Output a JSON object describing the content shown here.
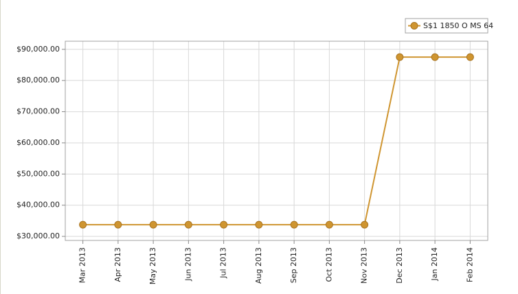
{
  "chart_data": {
    "type": "line",
    "categories": [
      "Mar 2013",
      "Apr 2013",
      "May 2013",
      "Jun 2013",
      "Jul 2013",
      "Aug 2013",
      "Sep 2013",
      "Oct 2013",
      "Nov 2013",
      "Dec 2013",
      "Jan 2014",
      "Feb 2014"
    ],
    "series": [
      {
        "name": "S$1 1850 O MS 64",
        "color": "#cf9530",
        "values": [
          33750,
          33750,
          33750,
          33750,
          33750,
          33750,
          33750,
          33750,
          33750,
          87500,
          87500,
          87500
        ]
      }
    ],
    "ylim": [
      28700,
      92600
    ],
    "yticks": [
      {
        "value": 30000,
        "label": "$30,000.00"
      },
      {
        "value": 40000,
        "label": "$40,000.00"
      },
      {
        "value": 50000,
        "label": "$50,000.00"
      },
      {
        "value": 60000,
        "label": "$60,000.00"
      },
      {
        "value": 70000,
        "label": "$70,000.00"
      },
      {
        "value": 80000,
        "label": "$80,000.00"
      },
      {
        "value": 90000,
        "label": "$90,000.00"
      }
    ],
    "grid": true,
    "legend": "top-right"
  }
}
